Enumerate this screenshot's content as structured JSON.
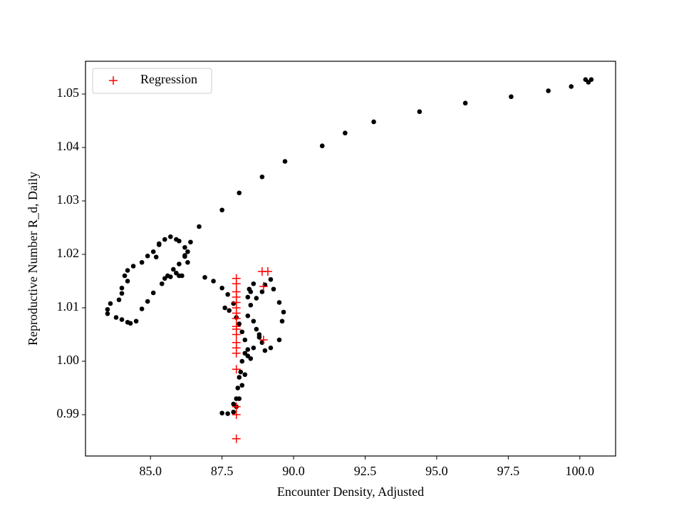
{
  "chart_data": {
    "type": "scatter",
    "xlabel": "Encounter Density, Adjusted",
    "ylabel": "Reproductive Number R_d, Daily",
    "xlim": [
      82.73,
      101.25
    ],
    "ylim": [
      0.98227,
      1.05613
    ],
    "xticks": [
      {
        "value": 85,
        "label": "85.0"
      },
      87.5,
      {
        "value": 90,
        "label": "90.0"
      },
      92.5,
      {
        "value": 95,
        "label": "95.0"
      },
      97.5,
      {
        "value": 100,
        "label": "100.0"
      }
    ],
    "yticks": [
      0.99,
      {
        "value": 1.0,
        "label": "1.00"
      },
      1.01,
      1.02,
      1.03,
      1.04,
      1.05
    ],
    "legend": "upper left",
    "series": [
      {
        "color": "#000000",
        "marker": "o",
        "x": [
          100.4,
          100.2,
          100.3,
          99.7,
          98.9,
          97.6,
          96.0,
          94.4,
          92.8,
          91.8,
          91.0,
          89.7,
          88.9,
          88.1,
          87.5,
          86.7,
          86.4,
          86.2,
          86.2,
          86.3,
          85.7,
          85.5,
          85.3,
          85.1,
          84.9,
          84.7,
          84.4,
          84.2,
          84.1,
          84.2,
          84.0,
          84.0,
          83.9,
          83.6,
          83.5,
          83.5,
          83.8,
          84.0,
          84.2,
          84.3,
          84.5,
          84.7,
          84.9,
          85.1,
          85.4,
          85.6,
          85.8,
          86.0,
          86.2,
          86.1,
          86.0,
          85.9,
          85.7,
          85.5,
          85.9,
          86.0,
          85.3,
          85.2,
          86.3,
          86.9,
          87.2,
          87.5,
          87.7,
          87.9,
          87.6,
          87.75,
          88.0,
          88.1,
          88.2,
          88.3,
          88.4,
          88.3,
          88.4,
          88.2,
          88.15,
          88.1,
          88.05,
          88.0,
          88.0,
          87.9,
          87.7,
          87.5,
          87.9,
          88.1,
          88.2,
          88.3,
          88.5,
          88.6,
          88.8,
          88.9,
          89.0,
          89.2,
          89.5,
          89.6,
          89.65,
          89.5,
          89.3,
          89.2,
          89.0,
          88.9,
          88.7,
          88.5,
          88.6,
          88.5,
          88.4,
          88.6,
          88.7,
          88.8,
          88.4,
          88.45
        ],
        "values": [
          1.0527,
          1.0527,
          1.0522,
          1.0514,
          1.0506,
          1.0495,
          1.0483,
          1.0467,
          1.0448,
          1.0427,
          1.0403,
          1.0374,
          1.0345,
          1.0315,
          1.0283,
          1.0252,
          1.0223,
          1.0213,
          1.0198,
          1.0185,
          1.0233,
          1.0228,
          1.022,
          1.0205,
          1.0197,
          1.0185,
          1.0178,
          1.017,
          1.016,
          1.015,
          1.0137,
          1.0127,
          1.0115,
          1.0108,
          1.0097,
          1.0089,
          1.0082,
          1.0078,
          1.0073,
          1.0071,
          1.0075,
          1.0098,
          1.0112,
          1.0128,
          1.0145,
          1.016,
          1.0172,
          1.0182,
          1.0196,
          1.016,
          1.016,
          1.0165,
          1.0158,
          1.0155,
          1.0228,
          1.0225,
          1.0218,
          1.0195,
          1.0205,
          1.0157,
          1.015,
          1.0137,
          1.0125,
          1.0108,
          1.01,
          1.0095,
          1.0082,
          1.007,
          1.0055,
          1.004,
          1.0022,
          1.0015,
          1.001,
          1.0,
          0.998,
          0.997,
          0.995,
          0.993,
          0.9915,
          0.9905,
          0.9902,
          0.9903,
          0.992,
          0.993,
          0.9955,
          0.9975,
          1.0005,
          1.0025,
          1.0045,
          1.0035,
          1.002,
          1.0025,
          1.004,
          1.0075,
          1.0092,
          1.011,
          1.0135,
          1.0153,
          1.0143,
          1.013,
          1.0118,
          1.013,
          1.0145,
          1.0105,
          1.0085,
          1.0075,
          1.006,
          1.005,
          1.012,
          1.0135
        ]
      },
      {
        "name": "Regression",
        "color": "#ff0000",
        "marker": "+",
        "x": [
          88.0,
          88.0,
          88.0,
          88.0,
          88.0,
          88.0,
          88.0,
          88.0,
          88.0,
          88.0,
          88.0,
          88.0,
          88.0,
          88.0,
          88.0,
          88.0,
          88.0,
          88.0,
          88.9,
          89.1,
          88.95,
          88.95
        ],
        "values": [
          1.0155,
          1.0145,
          1.013,
          1.012,
          1.011,
          1.01,
          1.009,
          1.008,
          1.0065,
          1.006,
          1.005,
          1.0035,
          1.0025,
          1.0015,
          0.9985,
          0.9915,
          0.99,
          0.9855,
          1.0168,
          1.0168,
          1.004,
          1.014
        ]
      }
    ]
  }
}
